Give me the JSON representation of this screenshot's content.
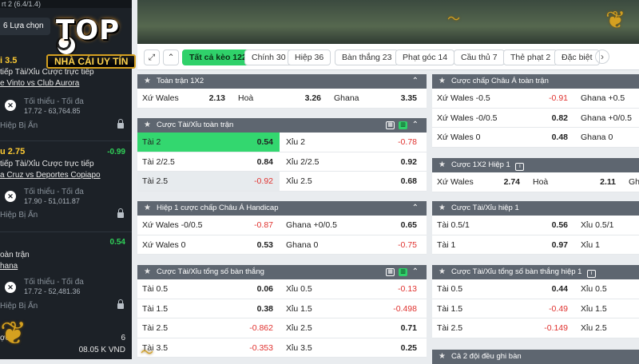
{
  "sidebar": {
    "top_text": "rt 2 (6.4/1.4)",
    "chip": "6 Lựa chọn",
    "blocks": [
      {
        "odd_left": "i 3.5",
        "line1": "tiếp Tài/Xỉu Cược trực tiếp",
        "line2": "e Vinto vs Club Aurora",
        "min_max": "Tối thiểu - Tối đa",
        "range": "17.72 - 63,764.85",
        "hidden": "Hiệp Bị Ẩn"
      },
      {
        "odd_left": "u 2.75",
        "odd_right": "-0.99",
        "line1": "tiếp Tài/Xỉu Cược trực tiếp",
        "line2": "a Cruz vs Deportes Copiapo",
        "min_max": "Tối thiểu - Tối đa",
        "range": "17.90 - 51,011.87",
        "hidden": "Hiệp Bị Ẩn"
      },
      {
        "odd_right": "0.54",
        "line1": "oàn trận",
        "line2": "hana",
        "min_max": "Tối thiểu - Tối đa",
        "range": "17.72 - 52,481.36",
        "hidden": "Hiệp Bị Ẩn"
      }
    ],
    "bottom_label": "ợc",
    "bottom_count": "6",
    "bottom_amount": "08.05 K VND"
  },
  "logo": {
    "top": "TOP",
    "sub": "NHÀ CÁI UY TÍN"
  },
  "tabs": {
    "icons": [
      "⤢",
      "⌃"
    ],
    "items": [
      {
        "label": "Tất cả kèo 122",
        "active": true
      },
      {
        "label": "Chính 30"
      },
      {
        "label": "Hiệp 36"
      },
      {
        "label": "Bàn thắng 23"
      },
      {
        "label": "Phạt góc 14"
      },
      {
        "label": "Cầu thủ 7"
      },
      {
        "label": "Thẻ phạt 2"
      },
      {
        "label": "Đặc biệt"
      }
    ],
    "next": "›"
  },
  "panels": {
    "p1x2": {
      "title": "Toàn trận 1X2",
      "rows": [
        [
          {
            "l": "Xứ Wales",
            "v": "2.13"
          },
          {
            "l": "Hoà",
            "v": "3.26"
          },
          {
            "l": "Ghana",
            "v": "3.35"
          }
        ]
      ]
    },
    "pou": {
      "title": "Cược Tài/Xỉu toàn trận",
      "rows": [
        [
          {
            "l": "Tài 2",
            "v": "0.54"
          },
          {
            "l": "Xỉu 2",
            "v": "-0.78"
          }
        ],
        [
          {
            "l": "Tài 2/2.5",
            "v": "0.84"
          },
          {
            "l": "Xỉu 2/2.5",
            "v": "0.92"
          }
        ],
        [
          {
            "l": "Tài 2.5",
            "v": "-0.92"
          },
          {
            "l": "Xỉu 2.5",
            "v": "0.68"
          }
        ]
      ]
    },
    "pah1": {
      "title": "Hiệp 1 cược chấp Châu Á Handicap",
      "rows": [
        [
          {
            "l": "Xứ Wales -0/0.5",
            "v": "-0.87"
          },
          {
            "l": "Ghana +0/0.5",
            "v": "0.65"
          }
        ],
        [
          {
            "l": "Xứ Wales 0",
            "v": "0.53"
          },
          {
            "l": "Ghana 0",
            "v": "-0.75"
          }
        ]
      ]
    },
    "pgoals": {
      "title": "Cược Tài/Xỉu tổng số bàn thắng",
      "rows": [
        [
          {
            "l": "Tài 0.5",
            "v": "0.06"
          },
          {
            "l": "Xỉu 0.5",
            "v": "-0.13"
          }
        ],
        [
          {
            "l": "Tài 1.5",
            "v": "0.38"
          },
          {
            "l": "Xỉu 1.5",
            "v": "-0.498"
          }
        ],
        [
          {
            "l": "Tài 2.5",
            "v": "-0.862"
          },
          {
            "l": "Xỉu 2.5",
            "v": "0.71"
          }
        ],
        [
          {
            "l": "Tài 3.5",
            "v": "-0.353"
          },
          {
            "l": "Xỉu 3.5",
            "v": "0.25"
          }
        ]
      ]
    },
    "pah": {
      "title": "Cược chấp Châu Á toàn trận",
      "rows": [
        [
          {
            "l": "Xứ Wales -0.5",
            "v": "-0.91"
          },
          {
            "l": "Ghana +0.5",
            "v": ""
          }
        ],
        [
          {
            "l": "Xứ Wales -0/0.5",
            "v": "0.82"
          },
          {
            "l": "Ghana +0/0.5",
            "v": ""
          }
        ],
        [
          {
            "l": "Xứ Wales 0",
            "v": "0.48"
          },
          {
            "l": "Ghana 0",
            "v": ""
          }
        ]
      ]
    },
    "p1x2h1": {
      "title": "Cược 1X2 Hiệp 1",
      "rows": [
        [
          {
            "l": "Xứ Wales",
            "v": "2.74"
          },
          {
            "l": "Hoà",
            "v": "2.11"
          },
          {
            "l": "Gh",
            "v": ""
          }
        ]
      ]
    },
    "pouh1": {
      "title": "Cược Tài/Xỉu hiệp 1",
      "rows": [
        [
          {
            "l": "Tài 0.5/1",
            "v": "0.56"
          },
          {
            "l": "Xỉu 0.5/1",
            "v": ""
          }
        ],
        [
          {
            "l": "Tài 1",
            "v": "0.97"
          },
          {
            "l": "Xỉu 1",
            "v": ""
          }
        ]
      ]
    },
    "pgoalsh1": {
      "title": "Cược Tài/Xỉu tổng số bàn thắng hiệp 1",
      "rows": [
        [
          {
            "l": "Tài 0.5",
            "v": "0.44"
          },
          {
            "l": "Xỉu 0.5",
            "v": ""
          }
        ],
        [
          {
            "l": "Tài 1.5",
            "v": "-0.49"
          },
          {
            "l": "Xỉu 1.5",
            "v": ""
          }
        ],
        [
          {
            "l": "Tài 2.5",
            "v": "-0.149"
          },
          {
            "l": "Xỉu 2.5",
            "v": ""
          }
        ]
      ]
    },
    "pboth": {
      "title": "Cả 2 đội đều ghi bàn"
    }
  },
  "colors": {
    "accent": "#2fd16a",
    "negative": "#e0322f",
    "panel_header": "#5e6670",
    "sidebar": "#1c2127"
  }
}
